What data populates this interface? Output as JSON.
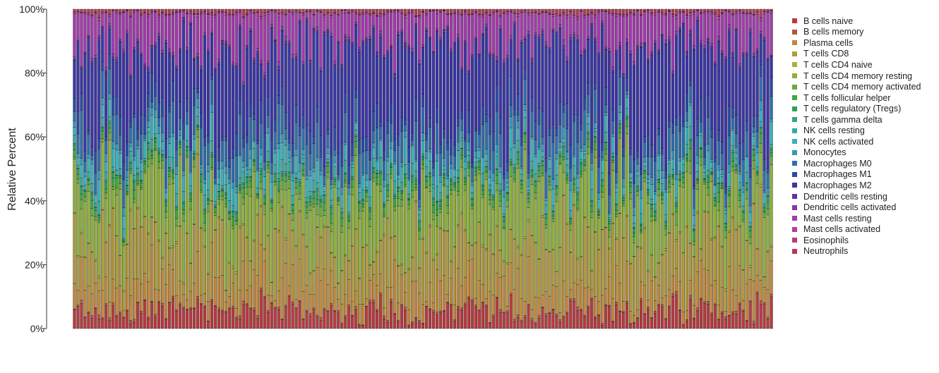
{
  "chart_data": {
    "type": "stacked-bar",
    "ylabel": "Relative Percent",
    "ylim": [
      0,
      100
    ],
    "yticks": [
      "0%",
      "20%",
      "40%",
      "60%",
      "80%",
      "100%"
    ],
    "n_samples": 199,
    "legend_position": "right",
    "grid": false,
    "series": [
      {
        "name": "B cells naive",
        "color": "#b83a3f",
        "typical_percent": 5
      },
      {
        "name": "B cells memory",
        "color": "#b4553a",
        "typical_percent": 0.5
      },
      {
        "name": "Plasma cells",
        "color": "#c08a3c",
        "typical_percent": 7
      },
      {
        "name": "T cells CD8",
        "color": "#b09a3c",
        "typical_percent": 13
      },
      {
        "name": "T cells CD4 naive",
        "color": "#a8b13c",
        "typical_percent": 0.3
      },
      {
        "name": "T cells CD4 memory resting",
        "color": "#8eb13a",
        "typical_percent": 14
      },
      {
        "name": "T cells CD4 memory activated",
        "color": "#6aaa37",
        "typical_percent": 1.5
      },
      {
        "name": "T cells follicular helper",
        "color": "#3fa73a",
        "typical_percent": 1.5
      },
      {
        "name": "T cells regulatory (Tregs)",
        "color": "#2f9f57",
        "typical_percent": 1.2
      },
      {
        "name": "T cells gamma delta",
        "color": "#33a57f",
        "typical_percent": 0.3
      },
      {
        "name": "NK cells resting",
        "color": "#36ab9e",
        "typical_percent": 2
      },
      {
        "name": "NK cells activated",
        "color": "#38b2bd",
        "typical_percent": 3.5
      },
      {
        "name": "Monocytes",
        "color": "#3598b8",
        "typical_percent": 1.5
      },
      {
        "name": "Macrophages M0",
        "color": "#2f6fab",
        "typical_percent": 6
      },
      {
        "name": "Macrophages M1",
        "color": "#2a4aa6",
        "typical_percent": 4
      },
      {
        "name": "Macrophages M2",
        "color": "#3a35a8",
        "typical_percent": 22
      },
      {
        "name": "Dendritic cells resting",
        "color": "#5a35a8",
        "typical_percent": 0.5
      },
      {
        "name": "Dendritic cells activated",
        "color": "#8338a8",
        "typical_percent": 0.6
      },
      {
        "name": "Mast cells resting",
        "color": "#a33aae",
        "typical_percent": 9
      },
      {
        "name": "Mast cells activated",
        "color": "#b43d9a",
        "typical_percent": 0.4
      },
      {
        "name": "Eosinophils",
        "color": "#b43c78",
        "typical_percent": 0.1
      },
      {
        "name": "Neutrophils",
        "color": "#b73a55",
        "typical_percent": 1
      }
    ]
  }
}
